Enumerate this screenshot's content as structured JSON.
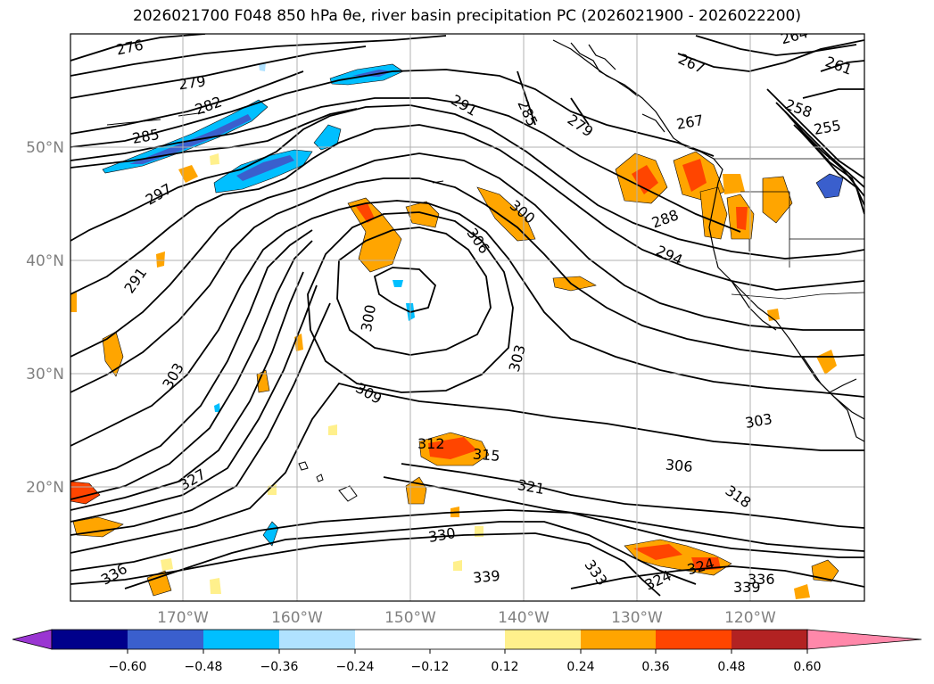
{
  "title": "2026021700 F048 850 hPa θe, river basin precipitation PC (2026021900 - 2026022200)",
  "lat_labels": [
    "50°N",
    "40°N",
    "30°N",
    "20°N"
  ],
  "lon_labels": [
    "170°W",
    "160°W",
    "150°W",
    "140°W",
    "130°W",
    "120°W"
  ],
  "contour_labels": [
    "276",
    "279",
    "282",
    "285",
    "297",
    "291",
    "291",
    "285",
    "279",
    "267",
    "264",
    "261",
    "258",
    "255",
    "267",
    "288",
    "294",
    "300",
    "306",
    "300",
    "303",
    "303",
    "309",
    "312",
    "315",
    "327",
    "321",
    "306",
    "303",
    "318",
    "330",
    "336",
    "339",
    "333",
    "324",
    "324",
    "336",
    "339"
  ],
  "colorbar": {
    "ticks": [
      "−0.60",
      "−0.48",
      "−0.36",
      "−0.24",
      "−0.12",
      "0.12",
      "0.24",
      "0.36",
      "0.48",
      "0.60"
    ],
    "colors": {
      "under": "#9a36d2",
      "bins": [
        "#00008b",
        "#3a5fcd",
        "#00bfff",
        "#b0e2ff",
        "#ffffff",
        "#fff08c",
        "#ffa500",
        "#ff4500",
        "#b22222"
      ],
      "over": "#ff88aa"
    }
  },
  "contour_color": "#000000",
  "grid_color": "#b0b0b0"
}
